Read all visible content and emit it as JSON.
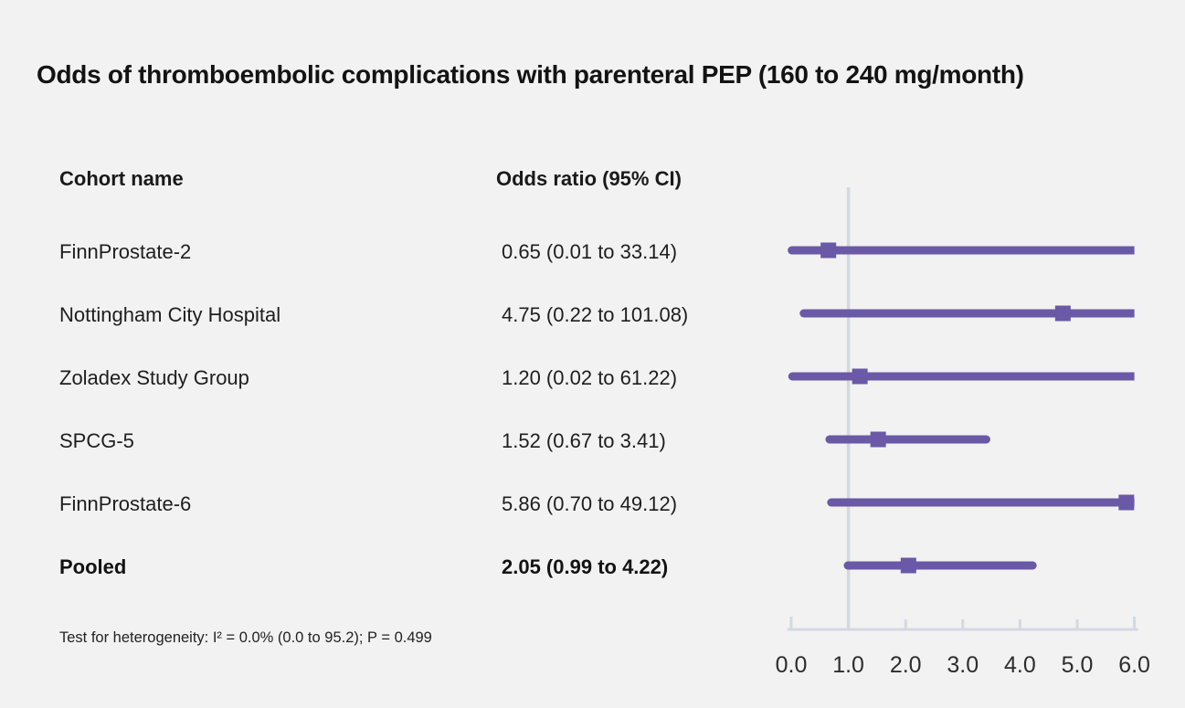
{
  "title": "Odds of thromboembolic complications with parenteral PEP (160 to 240 mg/month)",
  "columns": {
    "cohort": "Cohort name",
    "odds": "Odds ratio (95% CI)"
  },
  "footnote": "Test for heterogeneity: I² = 0.0% (0.0 to 95.2); P = 0.499",
  "colors": {
    "marker_purple": "#6a59a6",
    "axis_gray": "#d4d8e0",
    "background": "#f2f2f2",
    "text": "#1e1e1e"
  },
  "chart_data": {
    "type": "scatter",
    "variant": "forest-plot",
    "title": "Odds of thromboembolic complications with parenteral PEP (160 to 240 mg/month)",
    "xlabel": "Odds ratio",
    "xlim": [
      0.0,
      6.0
    ],
    "xticks": [
      0.0,
      1.0,
      2.0,
      3.0,
      4.0,
      5.0,
      6.0
    ],
    "xtick_labels": [
      "0.0",
      "1.0",
      "2.0",
      "3.0",
      "4.0",
      "5.0",
      "6.0"
    ],
    "reference_line_x": 1.0,
    "grid": false,
    "legend": "none",
    "points": [
      {
        "label": "FinnProstate-2",
        "or": 0.65,
        "ci_low": 0.01,
        "ci_high": 33.14,
        "display": "0.65 (0.01 to 33.14)",
        "bold": false
      },
      {
        "label": "Nottingham City Hospital",
        "or": 4.75,
        "ci_low": 0.22,
        "ci_high": 101.08,
        "display": "4.75 (0.22 to 101.08)",
        "bold": false
      },
      {
        "label": "Zoladex Study Group",
        "or": 1.2,
        "ci_low": 0.02,
        "ci_high": 61.22,
        "display": "1.20 (0.02 to 61.22)",
        "bold": false
      },
      {
        "label": "SPCG-5",
        "or": 1.52,
        "ci_low": 0.67,
        "ci_high": 3.41,
        "display": "1.52 (0.67 to 3.41)",
        "bold": false
      },
      {
        "label": "FinnProstate-6",
        "or": 5.86,
        "ci_low": 0.7,
        "ci_high": 49.12,
        "display": "5.86 (0.70 to 49.12)",
        "bold": false
      },
      {
        "label": "Pooled",
        "or": 2.05,
        "ci_low": 0.99,
        "ci_high": 4.22,
        "display": "2.05 (0.99 to 4.22)",
        "bold": true
      }
    ]
  }
}
